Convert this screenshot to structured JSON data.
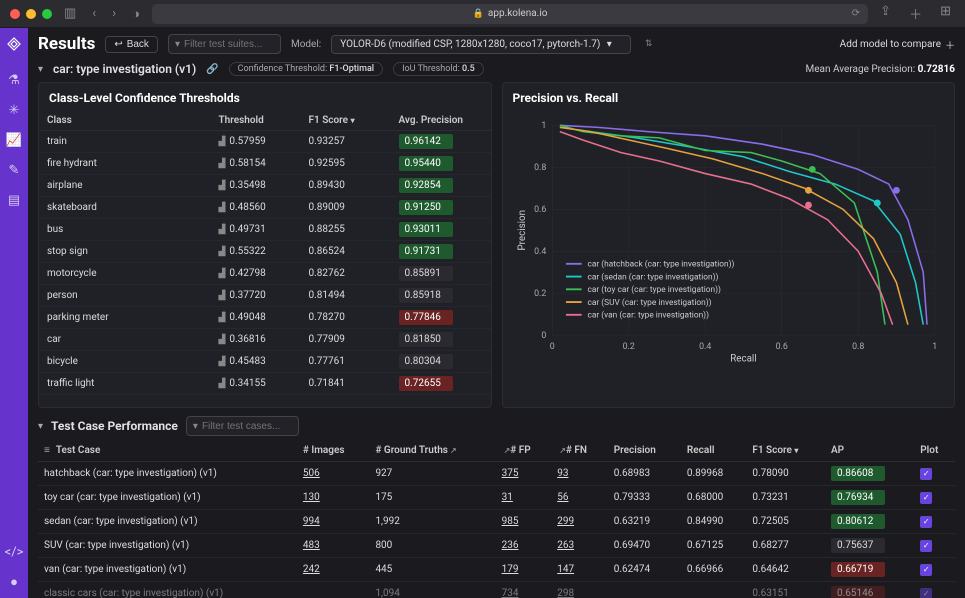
{
  "browser": {
    "url": "app.kolena.io"
  },
  "header": {
    "title": "Results",
    "back": "Back",
    "filter_placeholder": "Filter test suites...",
    "model_label": "Model:",
    "model_value": "YOLOR-D6 (modified CSP, 1280x1280, coco17, pytorch-1.7)",
    "add_model": "Add model to compare"
  },
  "subheader": {
    "investigation": "car: type investigation (v1)",
    "conf_label": "Confidence Threshold:",
    "conf_value": "F1-Optimal",
    "iou_label": "IoU Threshold:",
    "iou_value": "0.5",
    "map_label": "Mean Average Precision:",
    "map_value": "0.72816"
  },
  "thresholds": {
    "title": "Class-Level Confidence Thresholds",
    "columns": {
      "class": "Class",
      "threshold": "Threshold",
      "f1": "F1 Score",
      "ap": "Avg. Precision"
    },
    "rows": [
      {
        "class": "train",
        "threshold": "0.57959",
        "f1": "0.93257",
        "ap": "0.96142",
        "ap_style": "green"
      },
      {
        "class": "fire hydrant",
        "threshold": "0.58154",
        "f1": "0.92595",
        "ap": "0.95440",
        "ap_style": "green"
      },
      {
        "class": "airplane",
        "threshold": "0.35498",
        "f1": "0.89430",
        "ap": "0.92854",
        "ap_style": "green"
      },
      {
        "class": "skateboard",
        "threshold": "0.48560",
        "f1": "0.89009",
        "ap": "0.91250",
        "ap_style": "green"
      },
      {
        "class": "bus",
        "threshold": "0.49731",
        "f1": "0.88255",
        "ap": "0.93011",
        "ap_style": "green"
      },
      {
        "class": "stop sign",
        "threshold": "0.55322",
        "f1": "0.86524",
        "ap": "0.91731",
        "ap_style": "green"
      },
      {
        "class": "motorcycle",
        "threshold": "0.42798",
        "f1": "0.82762",
        "ap": "0.85891",
        "ap_style": "dark"
      },
      {
        "class": "person",
        "threshold": "0.37720",
        "f1": "0.81494",
        "ap": "0.85918",
        "ap_style": "dark"
      },
      {
        "class": "parking meter",
        "threshold": "0.49048",
        "f1": "0.78270",
        "ap": "0.77846",
        "ap_style": "red"
      },
      {
        "class": "car",
        "threshold": "0.36816",
        "f1": "0.77909",
        "ap": "0.81850",
        "ap_style": "dark"
      },
      {
        "class": "bicycle",
        "threshold": "0.45483",
        "f1": "0.77761",
        "ap": "0.80304",
        "ap_style": "dark"
      },
      {
        "class": "traffic light",
        "threshold": "0.34155",
        "f1": "0.71841",
        "ap": "0.72655",
        "ap_style": "red"
      }
    ]
  },
  "pr_chart": {
    "title": "Precision vs. Recall",
    "xlabel": "Recall",
    "ylabel": "Precision",
    "xlim": [
      0,
      1
    ],
    "ylim": [
      0,
      1
    ],
    "xticks": [
      "0",
      "0.2",
      "0.4",
      "0.6",
      "0.8",
      "1"
    ],
    "yticks": [
      "0",
      "0.2",
      "0.4",
      "0.6",
      "0.8",
      "1"
    ],
    "grid_color": "#2c2c34",
    "background_color": "#202027",
    "series": [
      {
        "name": "car (hatchback (car: type investigation))",
        "color": "#8a6de9",
        "marker": [
          0.9,
          0.69
        ],
        "points": [
          [
            0.02,
            1.0
          ],
          [
            0.12,
            0.99
          ],
          [
            0.25,
            0.97
          ],
          [
            0.4,
            0.95
          ],
          [
            0.55,
            0.91
          ],
          [
            0.68,
            0.86
          ],
          [
            0.8,
            0.79
          ],
          [
            0.88,
            0.72
          ],
          [
            0.93,
            0.55
          ],
          [
            0.97,
            0.3
          ],
          [
            0.98,
            0.05
          ]
        ]
      },
      {
        "name": "car (sedan (car: type investigation))",
        "color": "#1ec9c9",
        "marker": [
          0.85,
          0.63
        ],
        "points": [
          [
            0.02,
            0.99
          ],
          [
            0.1,
            0.97
          ],
          [
            0.22,
            0.94
          ],
          [
            0.35,
            0.9
          ],
          [
            0.5,
            0.85
          ],
          [
            0.62,
            0.78
          ],
          [
            0.74,
            0.72
          ],
          [
            0.84,
            0.64
          ],
          [
            0.91,
            0.48
          ],
          [
            0.95,
            0.25
          ],
          [
            0.97,
            0.05
          ]
        ]
      },
      {
        "name": "car (toy car (car: type investigation))",
        "color": "#3bbf53",
        "marker": [
          0.68,
          0.79
        ],
        "points": [
          [
            0.02,
            1.0
          ],
          [
            0.08,
            0.97
          ],
          [
            0.18,
            0.95
          ],
          [
            0.28,
            0.94
          ],
          [
            0.4,
            0.88
          ],
          [
            0.52,
            0.87
          ],
          [
            0.6,
            0.83
          ],
          [
            0.7,
            0.77
          ],
          [
            0.79,
            0.63
          ],
          [
            0.85,
            0.3
          ],
          [
            0.87,
            0.05
          ]
        ]
      },
      {
        "name": "car (SUV (car: type investigation))",
        "color": "#e6a23c",
        "marker": [
          0.67,
          0.69
        ],
        "points": [
          [
            0.02,
            0.99
          ],
          [
            0.1,
            0.97
          ],
          [
            0.2,
            0.93
          ],
          [
            0.3,
            0.89
          ],
          [
            0.42,
            0.84
          ],
          [
            0.55,
            0.77
          ],
          [
            0.66,
            0.7
          ],
          [
            0.76,
            0.6
          ],
          [
            0.84,
            0.46
          ],
          [
            0.9,
            0.25
          ],
          [
            0.93,
            0.05
          ]
        ]
      },
      {
        "name": "car (van (car: type investigation))",
        "color": "#e66f8d",
        "marker": [
          0.67,
          0.62
        ],
        "points": [
          [
            0.02,
            0.97
          ],
          [
            0.08,
            0.93
          ],
          [
            0.18,
            0.87
          ],
          [
            0.28,
            0.83
          ],
          [
            0.4,
            0.77
          ],
          [
            0.52,
            0.72
          ],
          [
            0.62,
            0.65
          ],
          [
            0.72,
            0.55
          ],
          [
            0.8,
            0.4
          ],
          [
            0.86,
            0.2
          ],
          [
            0.89,
            0.05
          ]
        ]
      }
    ]
  },
  "testcases": {
    "title": "Test Case Performance",
    "filter_placeholder": "Filter test cases...",
    "columns": {
      "tc": "Test Case",
      "images": "# Images",
      "gt": "# Ground Truths",
      "fp": "# FP",
      "fn": "# FN",
      "prec": "Precision",
      "recall": "Recall",
      "f1": "F1 Score",
      "ap": "AP",
      "plot": "Plot"
    },
    "rows": [
      {
        "tc": "hatchback (car: type investigation) (v1)",
        "images": "506",
        "gt": "927",
        "fp": "375",
        "fn": "93",
        "prec": "0.68983",
        "recall": "0.89968",
        "f1": "0.78090",
        "ap": "0.86608",
        "ap_style": "green",
        "plot": true
      },
      {
        "tc": "toy car (car: type investigation) (v1)",
        "images": "130",
        "gt": "175",
        "fp": "31",
        "fn": "56",
        "prec": "0.79333",
        "recall": "0.68000",
        "f1": "0.73231",
        "ap": "0.76934",
        "ap_style": "green",
        "plot": true
      },
      {
        "tc": "sedan (car: type investigation) (v1)",
        "images": "994",
        "gt": "1,992",
        "fp": "985",
        "fn": "299",
        "prec": "0.63219",
        "recall": "0.84990",
        "f1": "0.72505",
        "ap": "0.80612",
        "ap_style": "green",
        "plot": true
      },
      {
        "tc": "SUV (car: type investigation) (v1)",
        "images": "483",
        "gt": "800",
        "fp": "236",
        "fn": "263",
        "prec": "0.69470",
        "recall": "0.67125",
        "f1": "0.68277",
        "ap": "0.75637",
        "ap_style": "dark",
        "plot": true
      },
      {
        "tc": "van (car: type investigation) (v1)",
        "images": "242",
        "gt": "445",
        "fp": "179",
        "fn": "147",
        "prec": "0.62474",
        "recall": "0.66966",
        "f1": "0.64642",
        "ap": "0.66719",
        "ap_style": "red",
        "plot": true
      },
      {
        "tc": "classic cars (car: type investigation) (v1)",
        "images": "",
        "gt": "1,094",
        "fp": "734",
        "fn": "298",
        "prec": "",
        "recall": "",
        "f1": "0.63151",
        "ap": "0.65146",
        "ap_style": "red",
        "plot": true
      }
    ]
  }
}
